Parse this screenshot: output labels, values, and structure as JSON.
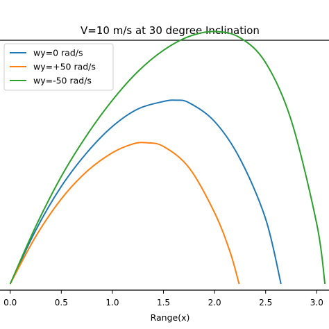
{
  "chart_data": {
    "type": "line",
    "title": "V=10 m/s at 30 degree Inclination",
    "xlabel": "Range(x)",
    "ylabel": "",
    "xlim": [
      -0.1,
      3.12
    ],
    "ylim": [
      -0.05,
      1.95
    ],
    "xticks": [
      0.0,
      0.5,
      1.0,
      1.5,
      2.0,
      2.5,
      3.0
    ],
    "xtick_labels": [
      "0.0",
      "0.5",
      "1.0",
      "1.5",
      "2.0",
      "2.5",
      "3.0"
    ],
    "legend": {
      "position": "top-left"
    },
    "grid": false,
    "series": [
      {
        "name": "wy=0 rad/s",
        "color": "#1f77b4",
        "x": [
          0.0,
          0.25,
          0.5,
          0.75,
          1.0,
          1.25,
          1.5,
          1.62,
          1.75,
          2.0,
          2.25,
          2.5,
          2.65
        ],
        "y": [
          0.0,
          0.43,
          0.78,
          1.05,
          1.26,
          1.4,
          1.46,
          1.47,
          1.45,
          1.3,
          1.0,
          0.52,
          0.0
        ]
      },
      {
        "name": "wy=+50 rad/s",
        "color": "#ff7f0e",
        "x": [
          0.0,
          0.25,
          0.5,
          0.75,
          1.0,
          1.2,
          1.33,
          1.5,
          1.75,
          2.0,
          2.15,
          2.24
        ],
        "y": [
          0.0,
          0.38,
          0.68,
          0.9,
          1.05,
          1.12,
          1.13,
          1.1,
          0.93,
          0.57,
          0.26,
          0.0
        ]
      },
      {
        "name": "wy=-50 rad/s",
        "color": "#2ca02c",
        "x": [
          0.0,
          0.25,
          0.5,
          0.75,
          1.0,
          1.25,
          1.5,
          1.75,
          2.0,
          2.25,
          2.5,
          2.75,
          3.0,
          3.08
        ],
        "y": [
          0.0,
          0.46,
          0.86,
          1.19,
          1.47,
          1.7,
          1.87,
          1.98,
          2.02,
          1.97,
          1.77,
          1.31,
          0.48,
          0.0
        ]
      }
    ]
  }
}
